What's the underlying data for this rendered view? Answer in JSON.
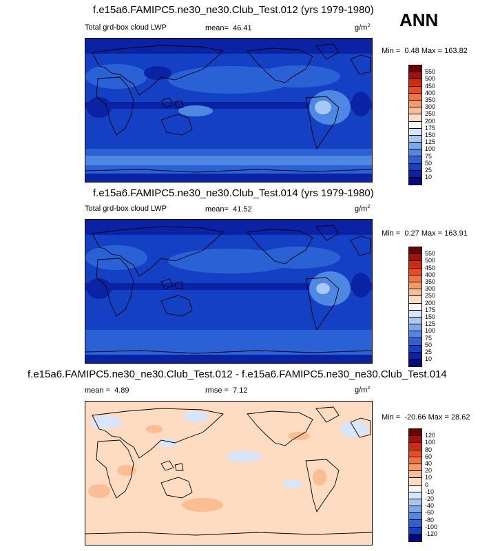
{
  "season": "ANN",
  "panels": [
    {
      "title": "f.e15a6.FAMIPC5.ne30_ne30.Club_Test.012 (yrs 1979-1980)",
      "left_label": "Total grd-box cloud LWP",
      "mean_label": "mean=",
      "mean_value": "46.41",
      "units": "g/m",
      "units_exp": "2",
      "min_label": "Min =",
      "min_value": "0.48",
      "max_label": "Max =",
      "max_value": "163.82",
      "colorbar": {
        "labels": [
          "550",
          "500",
          "450",
          "400",
          "350",
          "300",
          "250",
          "200",
          "175",
          "150",
          "125",
          "100",
          "75",
          "50",
          "25",
          "10"
        ],
        "colors": [
          "#6e0000",
          "#a50f0f",
          "#d42a10",
          "#ea4a1c",
          "#f4743a",
          "#f89a64",
          "#fbbd92",
          "#fddcc2",
          "#f6f6f6",
          "#d7e6fb",
          "#a7c8f3",
          "#7aa9ec",
          "#4f88e2",
          "#2a62d6",
          "#1440c4",
          "#0a22a4",
          "#030a7c"
        ]
      }
    },
    {
      "title": "f.e15a6.FAMIPC5.ne30_ne30.Club_Test.014 (yrs 1979-1980)",
      "left_label": "Total grd-box cloud LWP",
      "mean_label": "mean=",
      "mean_value": "41.52",
      "units": "g/m",
      "units_exp": "2",
      "min_label": "Min =",
      "min_value": "0.27",
      "max_label": "Max =",
      "max_value": "163.91",
      "colorbar": {
        "labels": [
          "550",
          "500",
          "450",
          "400",
          "350",
          "300",
          "250",
          "200",
          "175",
          "150",
          "125",
          "100",
          "75",
          "50",
          "25",
          "10"
        ],
        "colors": [
          "#6e0000",
          "#a50f0f",
          "#d42a10",
          "#ea4a1c",
          "#f4743a",
          "#f89a64",
          "#fbbd92",
          "#fddcc2",
          "#f6f6f6",
          "#d7e6fb",
          "#a7c8f3",
          "#7aa9ec",
          "#4f88e2",
          "#2a62d6",
          "#1440c4",
          "#0a22a4",
          "#030a7c"
        ]
      }
    },
    {
      "title": "f.e15a6.FAMIPC5.ne30_ne30.Club_Test.012 - f.e15a6.FAMIPC5.ne30_ne30.Club_Test.014",
      "mean_label": "mean =",
      "mean_value": "4.89",
      "rmse_label": "rmse =",
      "rmse_value": "7.12",
      "units": "g/m",
      "units_exp": "2",
      "min_label": "Min =",
      "min_value": "-20.66",
      "max_label": "Max =",
      "max_value": "28.62",
      "colorbar": {
        "labels": [
          "120",
          "100",
          "80",
          "60",
          "40",
          "20",
          "10",
          "0",
          "-10",
          "-20",
          "-40",
          "-60",
          "-80",
          "-100",
          "-120"
        ],
        "colors": [
          "#6e0000",
          "#a50f0f",
          "#d42a10",
          "#ea4a1c",
          "#f4743a",
          "#f89a64",
          "#fbbd92",
          "#fddcc2",
          "#f6f6f6",
          "#d7e6fb",
          "#a7c8f3",
          "#7aa9ec",
          "#4f88e2",
          "#2a62d6",
          "#1440c4",
          "#030a7c"
        ]
      }
    }
  ]
}
